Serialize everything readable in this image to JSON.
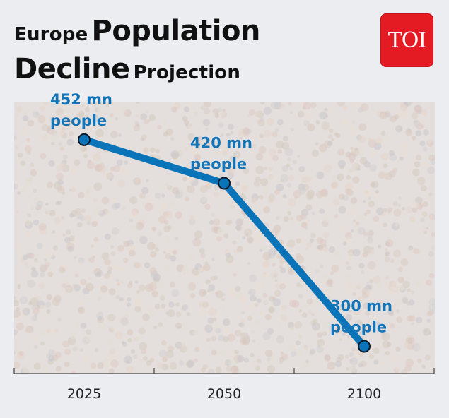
{
  "title": {
    "part1": "Europe",
    "part2": "Population",
    "part3": "Decline",
    "part4": "Projection"
  },
  "logo": {
    "text": "TOI",
    "color": "#e41b23"
  },
  "colors": {
    "line": "#0b74b8",
    "label": "#1474b8",
    "marker_fill": "#0b74b8",
    "marker_stroke": "#0a1a2a",
    "axis": "#444444"
  },
  "chart_data": {
    "type": "line",
    "title": "Europe Population Decline Projection",
    "xlabel": "",
    "ylabel": "",
    "categories": [
      "2025",
      "2050",
      "2100"
    ],
    "values": [
      452,
      420,
      300
    ],
    "data_labels": [
      [
        "452 mn",
        "people"
      ],
      [
        "420 mn",
        "people"
      ],
      [
        "300 mn",
        "people"
      ]
    ],
    "ylim": [
      280,
      480
    ],
    "grid": false,
    "legend": "none"
  }
}
